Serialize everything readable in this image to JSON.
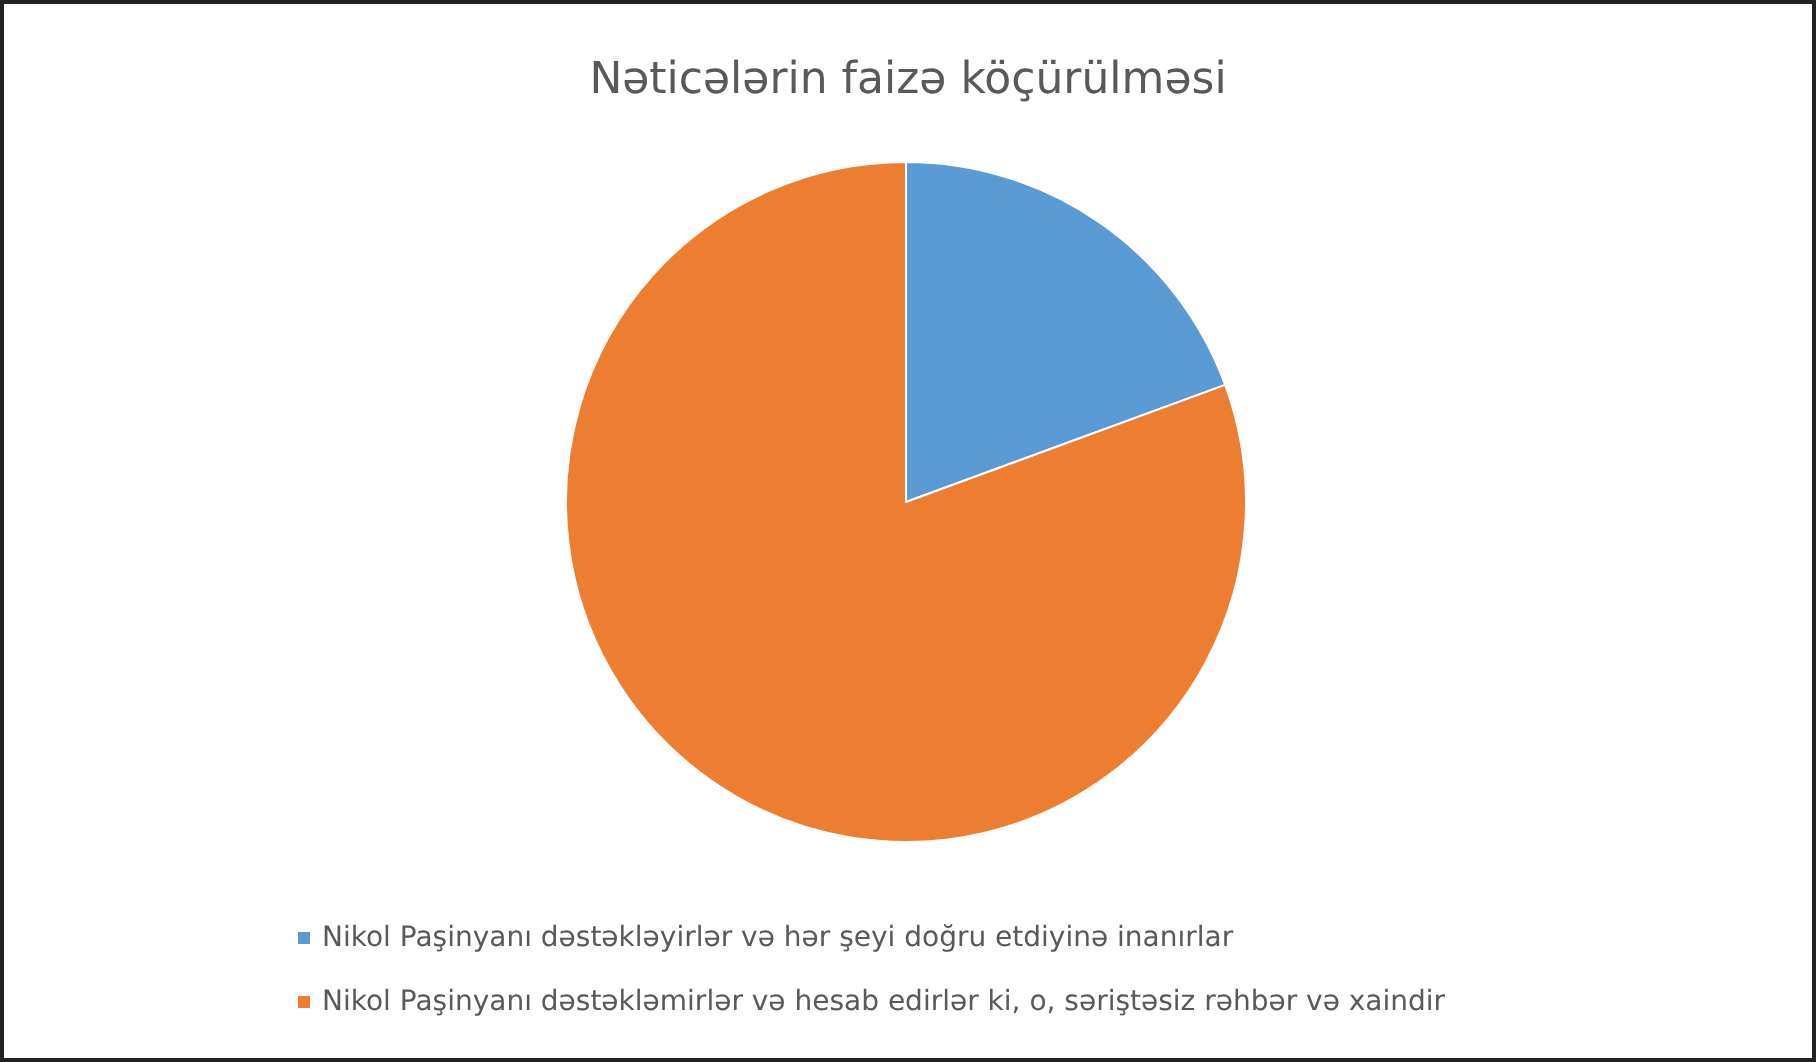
{
  "chart_data": {
    "type": "pie",
    "title": "Nəticələrin faizə köçürülməsi",
    "categories": [
      "Nikol Paşinyanı dəstəkləyirlər və hər şeyi doğru etdiyinə inanırlar",
      "Nikol Paşinyanı dəstəkləmirlər və hesab edirlər ki, o, səriştəsiz rəhbər və xaindir"
    ],
    "values": [
      19.4,
      80.6
    ],
    "colors": [
      "#5b9bd5",
      "#ed7d31"
    ],
    "legend": "bottom"
  }
}
